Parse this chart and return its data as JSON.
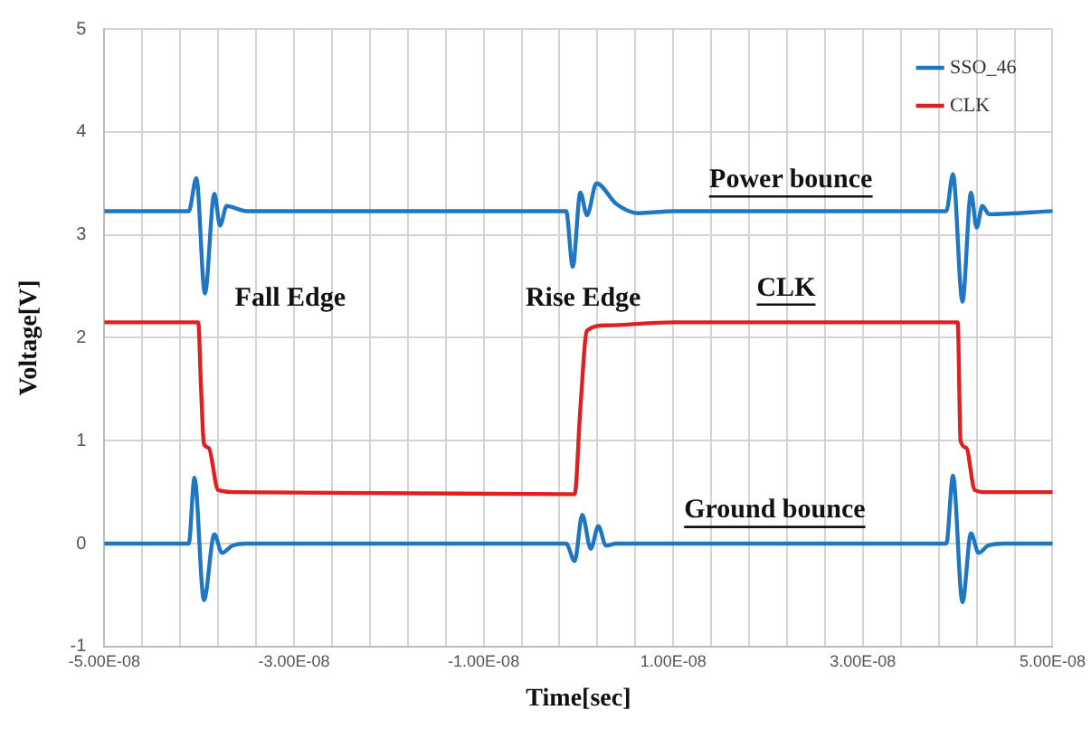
{
  "chart_data": {
    "type": "line",
    "xlabel": "Time[sec]",
    "ylabel": "Voltage[V]",
    "xlim": [
      -5e-08,
      5e-08
    ],
    "xticks": [
      {
        "value": -5e-08,
        "label": "-5.00E-08"
      },
      {
        "value": -4.6e-08,
        "label": null
      },
      {
        "value": -4.2e-08,
        "label": null
      },
      {
        "value": -3.8e-08,
        "label": null
      },
      {
        "value": -3.4e-08,
        "label": null
      },
      {
        "value": -3e-08,
        "label": "-3.00E-08"
      },
      {
        "value": -2.6e-08,
        "label": null
      },
      {
        "value": -2.2e-08,
        "label": null
      },
      {
        "value": -1.8e-08,
        "label": null
      },
      {
        "value": -1.4e-08,
        "label": null
      },
      {
        "value": -1e-08,
        "label": "-1.00E-08"
      },
      {
        "value": -6e-09,
        "label": null
      },
      {
        "value": -2e-09,
        "label": null
      },
      {
        "value": 2e-09,
        "label": null
      },
      {
        "value": 6e-09,
        "label": null
      },
      {
        "value": 1e-08,
        "label": "1.00E-08"
      },
      {
        "value": 1.4e-08,
        "label": null
      },
      {
        "value": 1.8e-08,
        "label": null
      },
      {
        "value": 2.2e-08,
        "label": null
      },
      {
        "value": 2.6e-08,
        "label": null
      },
      {
        "value": 3e-08,
        "label": "3.00E-08"
      },
      {
        "value": 3.4e-08,
        "label": null
      },
      {
        "value": 3.8e-08,
        "label": null
      },
      {
        "value": 4.2e-08,
        "label": null
      },
      {
        "value": 4.6e-08,
        "label": null
      },
      {
        "value": 5e-08,
        "label": "5.00E-08"
      }
    ],
    "ylim": [
      -1,
      5
    ],
    "yticks": [
      -1,
      0,
      1,
      2,
      3,
      4,
      5
    ],
    "grid": true,
    "legend": "top right",
    "marker": "none",
    "line_style": "solid",
    "series": [
      {
        "name": "SSO_46",
        "color": "#1f77c4",
        "x": [
          -5e-08,
          -4.11e-08,
          -4.03e-08,
          -3.94e-08,
          -3.84e-08,
          -3.78e-08,
          -3.71e-08,
          -3.5e-08,
          -1.3e-09,
          -6e-10,
          2e-10,
          9e-10,
          1.9e-09,
          4e-09,
          6.3e-09,
          1e-08,
          3.88e-08,
          3.95e-08,
          4.05e-08,
          4.14e-08,
          4.2e-08,
          4.26e-08,
          4.33e-08,
          5e-08
        ],
        "values": [
          3.23,
          3.23,
          3.55,
          2.43,
          3.4,
          3.09,
          3.28,
          3.23,
          3.23,
          2.69,
          3.41,
          3.19,
          3.5,
          3.3,
          3.21,
          3.23,
          3.23,
          3.59,
          2.35,
          3.41,
          3.07,
          3.28,
          3.2,
          3.23
        ]
      },
      {
        "name": "CLK",
        "color": "#e02020",
        "x": [
          -5e-08,
          -4.01e-08,
          -3.98e-08,
          -3.95e-08,
          -3.9e-08,
          -3.8e-08,
          -3.6e-08,
          -1e-09,
          -4e-10,
          2e-10,
          9e-10,
          2.9e-09,
          1e-08,
          4e-08,
          4.03e-08,
          4.09e-08,
          4.18e-08,
          4.3e-08,
          5e-08
        ],
        "values": [
          2.15,
          2.15,
          1.5,
          0.97,
          0.93,
          0.52,
          0.5,
          0.48,
          0.48,
          1.31,
          2.07,
          2.12,
          2.15,
          2.15,
          1.0,
          0.93,
          0.52,
          0.5,
          0.5
        ]
      },
      {
        "color": "#1f77c4",
        "x": [
          -5e-08,
          -4.11e-08,
          -4.05e-08,
          -3.95e-08,
          -3.84e-08,
          -3.76e-08,
          -3.65e-08,
          -3.5e-08,
          -1.3e-09,
          -4e-10,
          4e-10,
          1.3e-09,
          2.1e-09,
          2.9e-09,
          4e-09,
          3.88e-08,
          3.95e-08,
          4.05e-08,
          4.14e-08,
          4.22e-08,
          4.32e-08,
          4.5e-08,
          5e-08
        ],
        "values": [
          0,
          0,
          0.64,
          -0.55,
          0.09,
          -0.09,
          -0.02,
          0,
          0,
          -0.17,
          0.28,
          -0.05,
          0.17,
          -0.02,
          0,
          0,
          0.66,
          -0.57,
          0.1,
          -0.09,
          -0.02,
          0,
          0
        ]
      }
    ],
    "annotations": [
      "Fall Edge",
      "Rise Edge",
      "Power bounce",
      "CLK",
      "Ground bounce"
    ]
  }
}
